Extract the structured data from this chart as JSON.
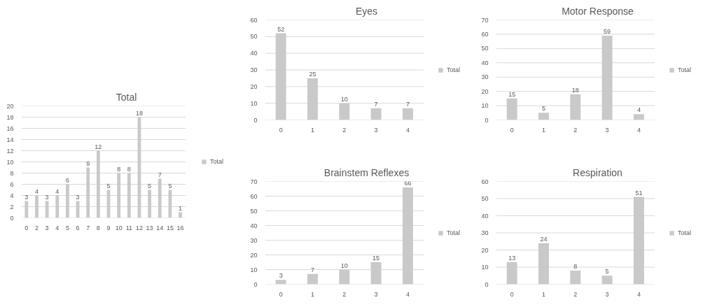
{
  "chart_data": [
    {
      "type": "bar",
      "title": "Total",
      "categories": [
        "0",
        "2",
        "3",
        "4",
        "5",
        "6",
        "7",
        "8",
        "9",
        "10",
        "11",
        "12",
        "13",
        "14",
        "15",
        "16"
      ],
      "series": [
        {
          "name": "Total",
          "color": "#c9c9c9",
          "values": [
            3,
            4,
            3,
            4,
            6,
            3,
            9,
            12,
            5,
            8,
            8,
            18,
            5,
            7,
            5,
            1
          ]
        }
      ],
      "ylim": [
        0,
        20
      ],
      "yticks": [
        0,
        2,
        4,
        6,
        8,
        10,
        12,
        14,
        16,
        18,
        20
      ],
      "grid": "y",
      "legend": "right",
      "data_labels": true
    },
    {
      "type": "bar",
      "title": "Eyes",
      "categories": [
        "0",
        "1",
        "2",
        "3",
        "4"
      ],
      "series": [
        {
          "name": "Total",
          "color": "#c9c9c9",
          "values": [
            52,
            25,
            10,
            7,
            7
          ]
        }
      ],
      "ylim": [
        0,
        60
      ],
      "yticks": [
        0,
        10,
        20,
        30,
        40,
        50,
        60
      ],
      "grid": "y",
      "legend": "right",
      "data_labels": true
    },
    {
      "type": "bar",
      "title": "Motor Response",
      "categories": [
        "0",
        "1",
        "2",
        "3",
        "4"
      ],
      "series": [
        {
          "name": "Total",
          "color": "#c9c9c9",
          "values": [
            15,
            5,
            18,
            59,
            4
          ]
        }
      ],
      "ylim": [
        0,
        70
      ],
      "yticks": [
        0,
        10,
        20,
        30,
        40,
        50,
        60,
        70
      ],
      "grid": "y",
      "legend": "right",
      "data_labels": true
    },
    {
      "type": "bar",
      "title": "Brainstem Reflexes",
      "categories": [
        "0",
        "1",
        "2",
        "3",
        "4"
      ],
      "series": [
        {
          "name": "Total",
          "color": "#c9c9c9",
          "values": [
            3,
            7,
            10,
            15,
            66
          ]
        }
      ],
      "ylim": [
        0,
        70
      ],
      "yticks": [
        0,
        10,
        20,
        30,
        40,
        50,
        60,
        70
      ],
      "grid": "y",
      "legend": "right",
      "data_labels": true
    },
    {
      "type": "bar",
      "title": "Respiration",
      "categories": [
        "0",
        "1",
        "2",
        "3",
        "4"
      ],
      "series": [
        {
          "name": "Total",
          "color": "#c9c9c9",
          "values": [
            13,
            24,
            8,
            5,
            51
          ]
        }
      ],
      "ylim": [
        0,
        60
      ],
      "yticks": [
        0,
        10,
        20,
        30,
        40,
        50,
        60
      ],
      "grid": "y",
      "legend": "right",
      "data_labels": true
    }
  ]
}
